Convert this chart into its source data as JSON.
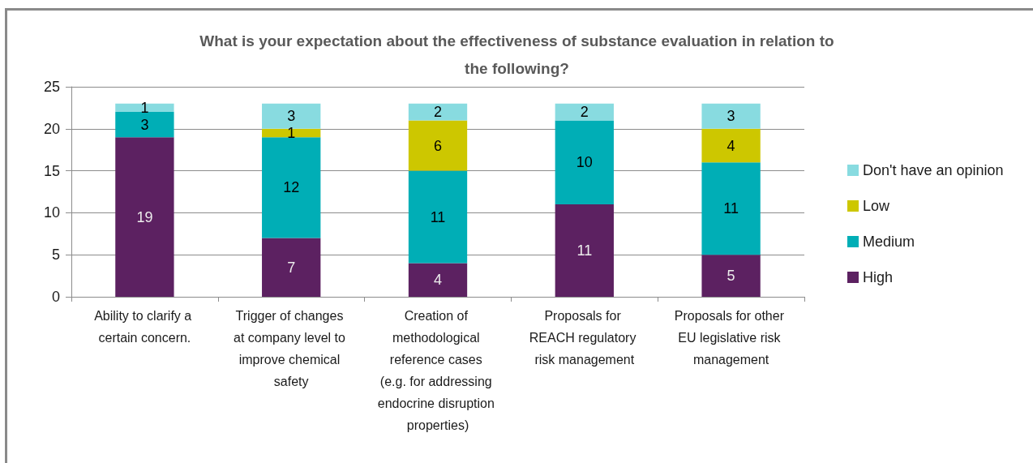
{
  "chart_data": {
    "type": "bar",
    "title": "What is your expectation about the effectiveness of substance evaluation in relation to the following?",
    "categories": [
      "Ability to clarify a certain concern.",
      "Trigger of changes at company level to improve chemical safety",
      "Creation of methodological reference cases (e.g. for addressing endocrine disruption properties)",
      "Proposals for REACH regulatory risk management",
      "Proposals for other EU legislative risk management"
    ],
    "series": [
      {
        "name": "High",
        "color": "#5c2161",
        "values": [
          19,
          7,
          4,
          11,
          5
        ]
      },
      {
        "name": "Medium",
        "color": "#00aeb6",
        "values": [
          3,
          12,
          11,
          10,
          11
        ]
      },
      {
        "name": "Low",
        "color": "#cdc700",
        "values": [
          null,
          1,
          6,
          null,
          4
        ]
      },
      {
        "name": "Don't have an opinion",
        "color": "#88dbe0",
        "values": [
          1,
          3,
          2,
          2,
          3
        ]
      }
    ],
    "stacked": true,
    "ylim": [
      0,
      25
    ],
    "yticks": [
      0,
      5,
      10,
      15,
      20,
      25
    ],
    "grid": "y",
    "legend": "right",
    "data_labels": true
  }
}
